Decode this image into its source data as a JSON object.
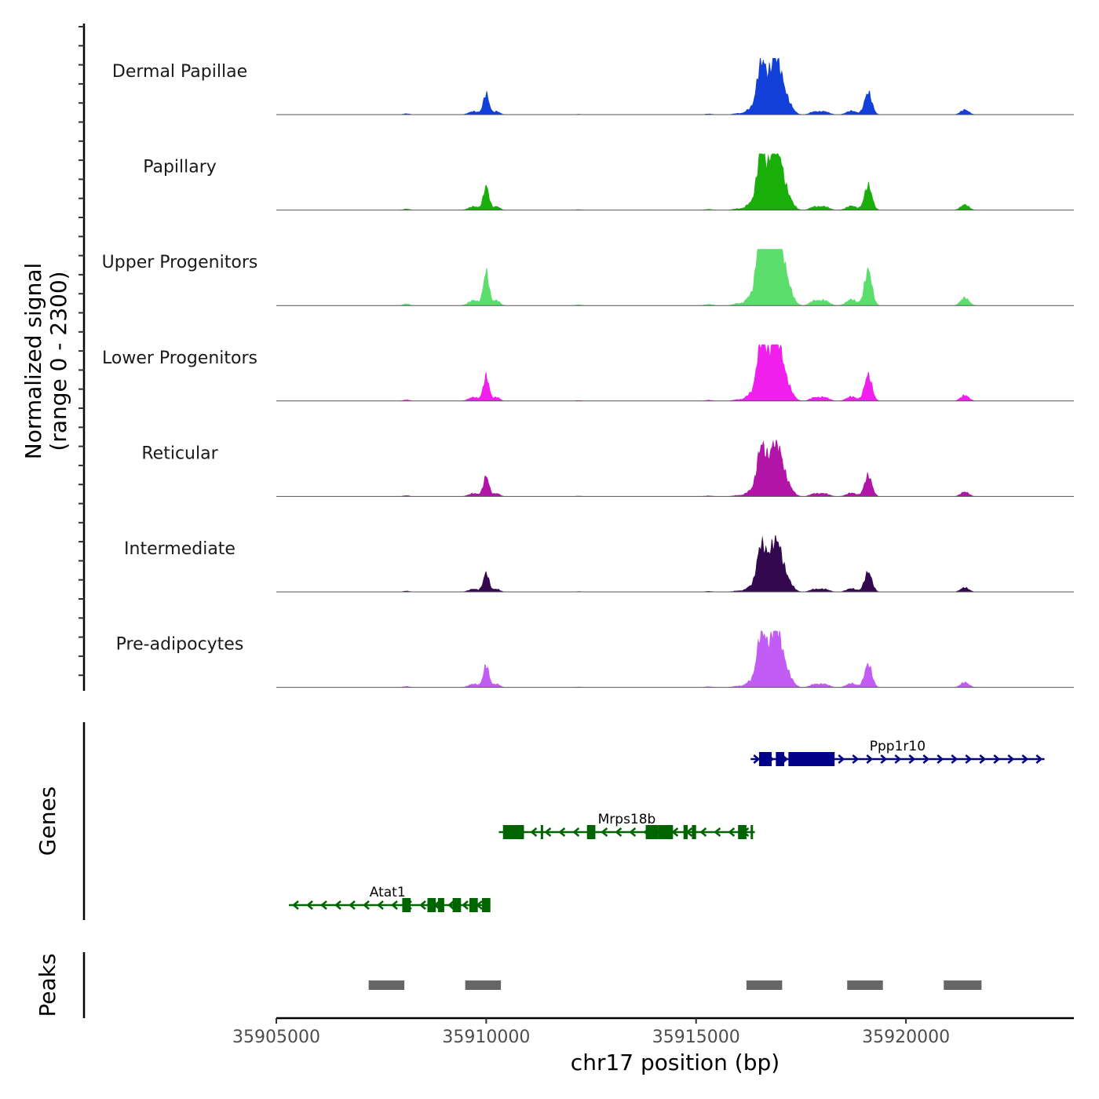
{
  "chart_data": {
    "type": "area",
    "chromosome": "chr17",
    "xlim": [
      35905000,
      35924000
    ],
    "xticks": [
      35905000,
      35910000,
      35915000,
      35920000
    ],
    "xlabel": "chr17 position (bp)",
    "signal_ylabel": [
      "Normalized signal",
      "(range 0 - 2300)"
    ],
    "signal_ylim": [
      0,
      2300
    ],
    "tracks": [
      {
        "name": "Dermal Papillae",
        "color": "#1340d9",
        "scale": 1.0
      },
      {
        "name": "Papillary",
        "color": "#1aae0a",
        "scale": 1.12
      },
      {
        "name": "Upper Progenitors",
        "color": "#5bde6c",
        "scale": 1.6
      },
      {
        "name": "Lower Progenitors",
        "color": "#f01fee",
        "scale": 1.18
      },
      {
        "name": "Reticular",
        "color": "#b314a8",
        "scale": 0.95
      },
      {
        "name": "Intermediate",
        "color": "#33084f",
        "scale": 0.9
      },
      {
        "name": "Pre-adipocytes",
        "color": "#c35cf5",
        "scale": 1.05
      }
    ],
    "signal_peaks": [
      {
        "pos": 35908100,
        "height": 20,
        "width": 80
      },
      {
        "pos": 35909700,
        "height": 60,
        "width": 120
      },
      {
        "pos": 35910000,
        "height": 380,
        "width": 70
      },
      {
        "pos": 35910250,
        "height": 60,
        "width": 80
      },
      {
        "pos": 35912200,
        "height": 10,
        "width": 80
      },
      {
        "pos": 35915300,
        "height": 15,
        "width": 100
      },
      {
        "pos": 35916000,
        "height": 25,
        "width": 120
      },
      {
        "pos": 35916250,
        "height": 80,
        "width": 80
      },
      {
        "pos": 35916550,
        "height": 900,
        "width": 110
      },
      {
        "pos": 35916900,
        "height": 1050,
        "width": 150
      },
      {
        "pos": 35917200,
        "height": 150,
        "width": 120
      },
      {
        "pos": 35917800,
        "height": 50,
        "width": 100
      },
      {
        "pos": 35918050,
        "height": 60,
        "width": 120
      },
      {
        "pos": 35918700,
        "height": 70,
        "width": 120
      },
      {
        "pos": 35919100,
        "height": 400,
        "width": 90
      },
      {
        "pos": 35921400,
        "height": 90,
        "width": 100
      }
    ],
    "genes": [
      {
        "name": "Ppp1r10",
        "start": 35916300,
        "end": 35923300,
        "strand": "+",
        "color": "#00008b",
        "exons": [
          [
            35916500,
            35916800
          ],
          [
            35916900,
            35917100
          ],
          [
            35917200,
            35918300
          ]
        ]
      },
      {
        "name": "Mrps18b",
        "start": 35910300,
        "end": 35916400,
        "strand": "-",
        "color": "#006400",
        "exons": [
          [
            35910400,
            35910900
          ],
          [
            35911300,
            35911350
          ],
          [
            35912400,
            35912600
          ],
          [
            35913800,
            35914100
          ],
          [
            35914100,
            35914450
          ],
          [
            35914700,
            35914800
          ],
          [
            35914900,
            35915000
          ],
          [
            35916000,
            35916200
          ],
          [
            35916300,
            35916350
          ]
        ]
      },
      {
        "name": "Atat1",
        "start": 35905300,
        "end": 35910000,
        "strand": "-",
        "color": "#006400",
        "exons": [
          [
            35908000,
            35908200
          ],
          [
            35908600,
            35908800
          ],
          [
            35908850,
            35909000
          ],
          [
            35909200,
            35909400
          ],
          [
            35909600,
            35909800
          ],
          [
            35909900,
            35910100
          ]
        ]
      }
    ],
    "peaks": [
      {
        "start": 35907200,
        "end": 35908050
      },
      {
        "start": 35909500,
        "end": 35910350
      },
      {
        "start": 35916200,
        "end": 35917050
      },
      {
        "start": 35918600,
        "end": 35919450
      },
      {
        "start": 35920900,
        "end": 35921800
      }
    ],
    "genes_ylabel": "Genes",
    "peaks_ylabel": "Peaks",
    "peak_color": "#666666"
  }
}
